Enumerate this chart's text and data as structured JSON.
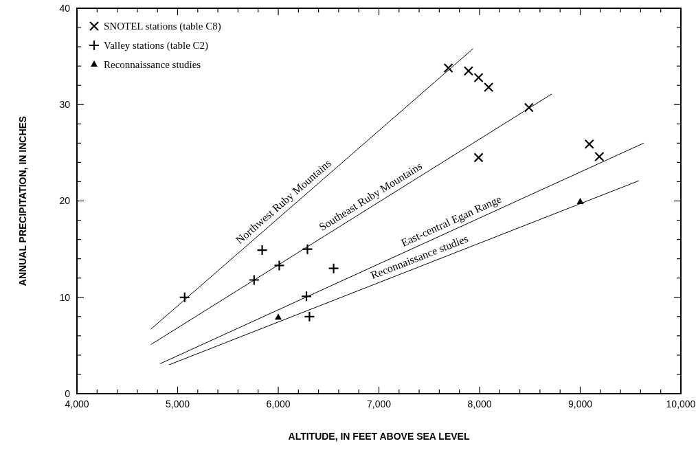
{
  "chart_data": {
    "type": "scatter",
    "xlabel": "ALTITUDE, IN FEET ABOVE SEA LEVEL",
    "ylabel": "ANNUAL PRECIPITATION, IN INCHES",
    "xlim": [
      4000,
      10000
    ],
    "ylim": [
      0,
      40
    ],
    "xticks": [
      {
        "value": 4000,
        "label": "4,000"
      },
      {
        "value": 4200,
        "label": null
      },
      {
        "value": 4400,
        "label": null
      },
      {
        "value": 4600,
        "label": null
      },
      {
        "value": 4800,
        "label": null
      },
      {
        "value": 5000,
        "label": "5,000"
      },
      {
        "value": 5200,
        "label": null
      },
      {
        "value": 5400,
        "label": null
      },
      {
        "value": 5600,
        "label": null
      },
      {
        "value": 5800,
        "label": null
      },
      {
        "value": 6000,
        "label": "6,000"
      },
      {
        "value": 6200,
        "label": null
      },
      {
        "value": 6400,
        "label": null
      },
      {
        "value": 6600,
        "label": null
      },
      {
        "value": 6800,
        "label": null
      },
      {
        "value": 7000,
        "label": "7,000"
      },
      {
        "value": 7200,
        "label": null
      },
      {
        "value": 7400,
        "label": null
      },
      {
        "value": 7600,
        "label": null
      },
      {
        "value": 7800,
        "label": null
      },
      {
        "value": 8000,
        "label": "8,000"
      },
      {
        "value": 8200,
        "label": null
      },
      {
        "value": 8400,
        "label": null
      },
      {
        "value": 8600,
        "label": null
      },
      {
        "value": 8800,
        "label": null
      },
      {
        "value": 9000,
        "label": "9,000"
      },
      {
        "value": 9200,
        "label": null
      },
      {
        "value": 9400,
        "label": null
      },
      {
        "value": 9600,
        "label": null
      },
      {
        "value": 9800,
        "label": null
      },
      {
        "value": 10000,
        "label": "10,000"
      }
    ],
    "yticks": [
      0,
      {
        "value": 2,
        "label": null
      },
      {
        "value": 4,
        "label": null
      },
      {
        "value": 6,
        "label": null
      },
      {
        "value": 8,
        "label": null
      },
      10,
      {
        "value": 12,
        "label": null
      },
      {
        "value": 14,
        "label": null
      },
      {
        "value": 16,
        "label": null
      },
      {
        "value": 18,
        "label": null
      },
      20,
      {
        "value": 22,
        "label": null
      },
      {
        "value": 24,
        "label": null
      },
      {
        "value": 26,
        "label": null
      },
      {
        "value": 28,
        "label": null
      },
      30,
      {
        "value": 32,
        "label": null
      },
      {
        "value": 34,
        "label": null
      },
      {
        "value": 36,
        "label": null
      },
      {
        "value": 38,
        "label": null
      },
      40
    ],
    "grid": false,
    "legend": "top left",
    "series": [
      {
        "name": "SNOTEL stations (table C8)",
        "color": "#000000",
        "marker": "x",
        "x": [
          7690,
          7890,
          7990,
          8090,
          8490,
          7990,
          9090,
          9190
        ],
        "values": [
          33.8,
          33.5,
          32.8,
          31.8,
          29.7,
          24.5,
          25.9,
          24.6
        ]
      },
      {
        "name": "Valley stations (table C2)",
        "color": "#000000",
        "marker": "cross",
        "x": [
          5070,
          5760,
          5840,
          6010,
          6290,
          6280,
          6310,
          6550
        ],
        "values": [
          10.0,
          11.8,
          14.9,
          13.3,
          15.0,
          10.1,
          8.0,
          13.0
        ]
      },
      {
        "name": "Reconnaissance studies",
        "color": "#000000",
        "marker": "triangle",
        "x": [
          6000,
          9000
        ],
        "values": [
          7.9,
          19.9
        ]
      },
      {
        "type": "line",
        "name": "Northwest Ruby Mountains",
        "color": "#000000",
        "marker": "none",
        "x": [
          4735,
          7935
        ],
        "values": [
          6.7,
          35.8
        ]
      },
      {
        "type": "line",
        "name": "Southeast Ruby Mountains",
        "color": "#000000",
        "marker": "none",
        "x": [
          4735,
          8717
        ],
        "values": [
          5.1,
          31.1
        ]
      },
      {
        "type": "line",
        "name": "East-central Egan Range",
        "color": "#000000",
        "marker": "none",
        "x": [
          4825,
          9630
        ],
        "values": [
          3.1,
          26.0
        ]
      },
      {
        "type": "line",
        "name": "Reconnaissance studies",
        "color": "#000000",
        "marker": "none",
        "x": [
          4916,
          9583
        ],
        "values": [
          3.0,
          22.1
        ]
      }
    ]
  }
}
